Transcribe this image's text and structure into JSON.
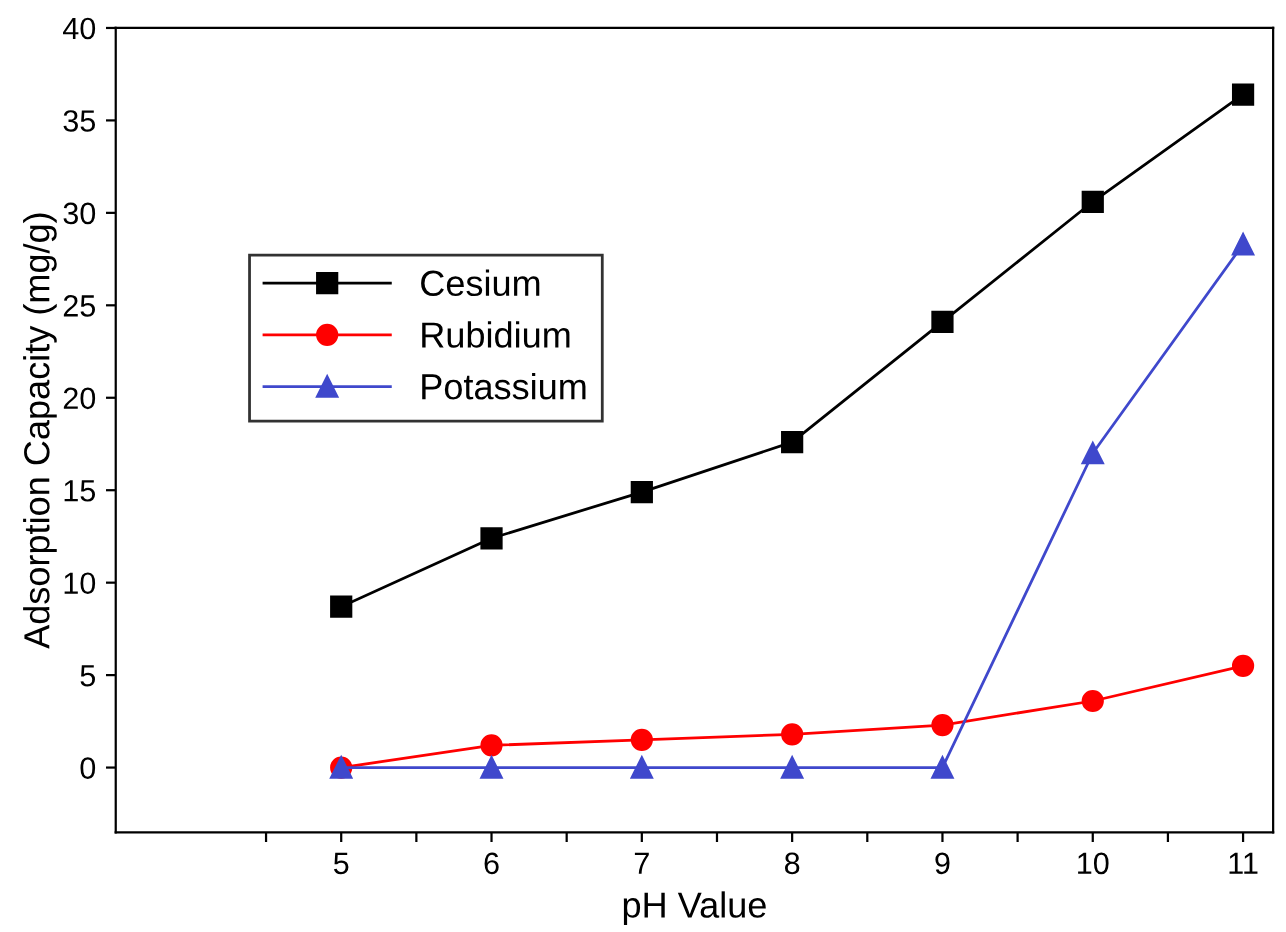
{
  "chart_data": {
    "type": "line",
    "xlabel": "pH Value",
    "ylabel": "Adsorption Capacity (mg/g)",
    "x": [
      5,
      6,
      7,
      8,
      9,
      10,
      11
    ],
    "series": [
      {
        "name": "Cesium",
        "color": "#000000",
        "marker": "square",
        "values": [
          8.7,
          12.4,
          14.9,
          17.6,
          24.1,
          30.6,
          36.4
        ]
      },
      {
        "name": "Rubidium",
        "color": "#ff0000",
        "marker": "circle",
        "values": [
          0,
          1.2,
          1.5,
          1.8,
          2.3,
          3.6,
          5.5
        ]
      },
      {
        "name": "Potassium",
        "color": "#3f48cc",
        "marker": "triangle",
        "values": [
          0,
          0,
          0,
          0,
          0,
          17,
          28.3
        ]
      }
    ],
    "xlim": [
      3.5,
      11.2
    ],
    "ylim": [
      -3.5,
      40
    ],
    "xticks": [
      {
        "value": 4.5,
        "label": null
      },
      5,
      {
        "value": 5.5,
        "label": null
      },
      6,
      {
        "value": 6.5,
        "label": null
      },
      7,
      {
        "value": 7.5,
        "label": null
      },
      8,
      {
        "value": 8.5,
        "label": null
      },
      9,
      {
        "value": 9.5,
        "label": null
      },
      10,
      {
        "value": 10.5,
        "label": null
      },
      11
    ],
    "yticks": [
      0,
      5,
      10,
      15,
      20,
      25,
      30,
      35,
      40
    ],
    "legend": "top left",
    "grid": false,
    "line_style": "solid"
  }
}
